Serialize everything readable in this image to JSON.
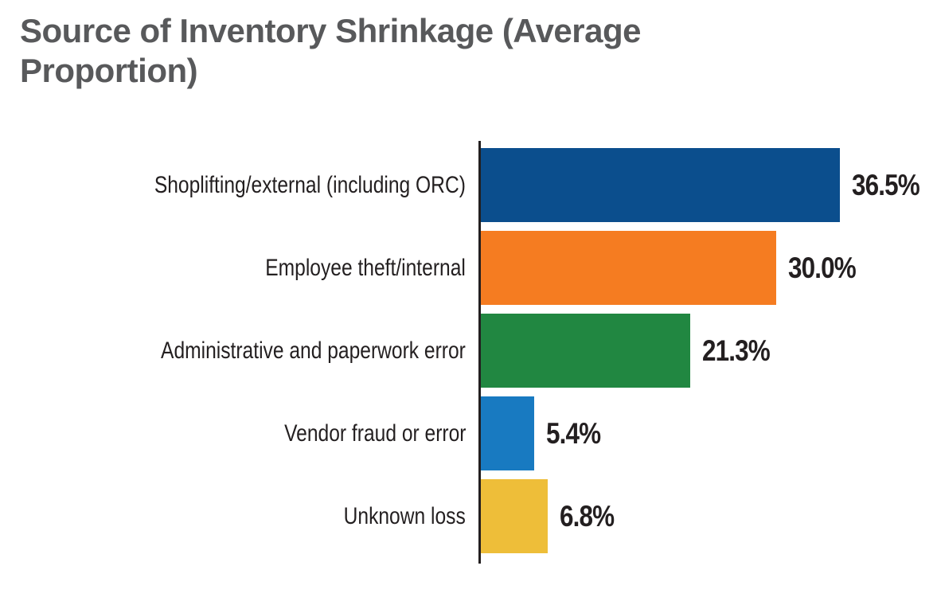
{
  "header": {
    "title_lines": [
      "Source of Inventory Shrinkage (Average",
      "Proportion)"
    ]
  },
  "chart_data": {
    "type": "bar",
    "orientation": "horizontal",
    "title": "Source of Inventory Shrinkage (Average Proportion)",
    "categories": [
      "Shoplifting/external (including ORC)",
      "Employee theft/internal",
      "Administrative and paperwork error",
      "Vendor fraud or error",
      "Unknown loss"
    ],
    "values": [
      36.5,
      30.0,
      21.3,
      5.4,
      6.8
    ],
    "value_labels": [
      "36.5%",
      "30.0%",
      "21.3%",
      "5.4%",
      "6.8%"
    ],
    "bar_colors": [
      "#0b4e8d",
      "#f57c21",
      "#218741",
      "#187ac1",
      "#eebe39"
    ],
    "xlabel": "",
    "ylabel": "",
    "xlim": [
      0,
      40
    ],
    "grid": false,
    "legend": false,
    "axis_color": "#231f20",
    "title_color": "#58595b",
    "label_color": "#231f20"
  }
}
